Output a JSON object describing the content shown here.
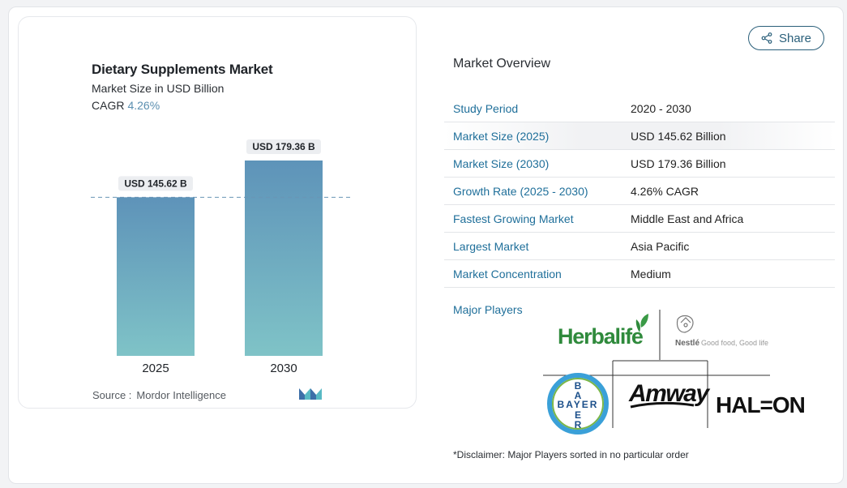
{
  "chart_data": {
    "type": "bar",
    "title": "Dietary Supplements Market",
    "subtitle": "Market Size in USD Billion",
    "cagr_label": "CAGR",
    "cagr_value": "4.26%",
    "categories": [
      "2025",
      "2030"
    ],
    "values": [
      145.62,
      179.36
    ],
    "value_labels": [
      "USD 145.62 B",
      "USD 179.36 B"
    ],
    "ylim": [
      0,
      180
    ],
    "reference_line": 145.62,
    "colors": {
      "bar_top": "#5e93b9",
      "bar_bottom": "#7fc3c7",
      "label_bg": "#eceef1",
      "ref_line": "#6a95b5"
    }
  },
  "source": {
    "label": "Source :",
    "value": "Mordor Intelligence"
  },
  "share_label": "Share",
  "overview": {
    "title": "Market Overview",
    "rows": [
      {
        "key": "Study Period",
        "value": "2020 - 2030"
      },
      {
        "key": "Market Size (2025)",
        "value": "USD 145.62 Billion"
      },
      {
        "key": "Market Size (2030)",
        "value": "USD 179.36 Billion"
      },
      {
        "key": "Growth Rate (2025 - 2030)",
        "value": "4.26% CAGR"
      },
      {
        "key": "Fastest Growing Market",
        "value": "Middle East and Africa"
      },
      {
        "key": "Largest Market",
        "value": "Asia Pacific"
      },
      {
        "key": "Market Concentration",
        "value": "Medium"
      }
    ]
  },
  "players": {
    "label": "Major Players",
    "logos": [
      "Herbalife",
      "Nestlé Good food, Good life",
      "BAYER",
      "Amway",
      "HALEON"
    ]
  },
  "disclaimer": "*Disclaimer: Major Players sorted in no particular order"
}
